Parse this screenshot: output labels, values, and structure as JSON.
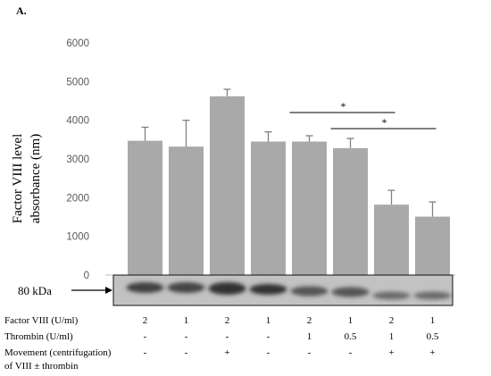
{
  "chart_data": {
    "type": "bar",
    "panel_label": "A.",
    "ylabel_lines": [
      "Factor VIII level",
      "absorbance (nm)"
    ],
    "ylim": [
      0,
      6000
    ],
    "yticks": [
      0,
      1000,
      2000,
      3000,
      4000,
      5000,
      6000
    ],
    "grid": false,
    "values": [
      3470,
      3320,
      4620,
      3450,
      3450,
      3280,
      1820,
      1510
    ],
    "errors": [
      350,
      680,
      180,
      250,
      150,
      250,
      370,
      380
    ],
    "bar_color": "#a9a9a9",
    "significance": [
      {
        "from": 4,
        "to": 6,
        "label": "*"
      },
      {
        "from": 5,
        "to": 7,
        "label": "*"
      }
    ],
    "blot_label": "80 kDa",
    "conditions": [
      {
        "label": "Factor VIII (U/ml)",
        "values": [
          "2",
          "1",
          "2",
          "1",
          "2",
          "1",
          "2",
          "1"
        ]
      },
      {
        "label": "Thrombin (U/ml)",
        "values": [
          "-",
          "-",
          "-",
          "-",
          "1",
          "0.5",
          "1",
          "0.5"
        ]
      },
      {
        "label_lines": [
          "Movement (centrifugation)",
          "of VIII ± thrombin"
        ],
        "values": [
          "-",
          "-",
          "+",
          "-",
          "-",
          "-",
          "+",
          "+"
        ]
      }
    ]
  }
}
